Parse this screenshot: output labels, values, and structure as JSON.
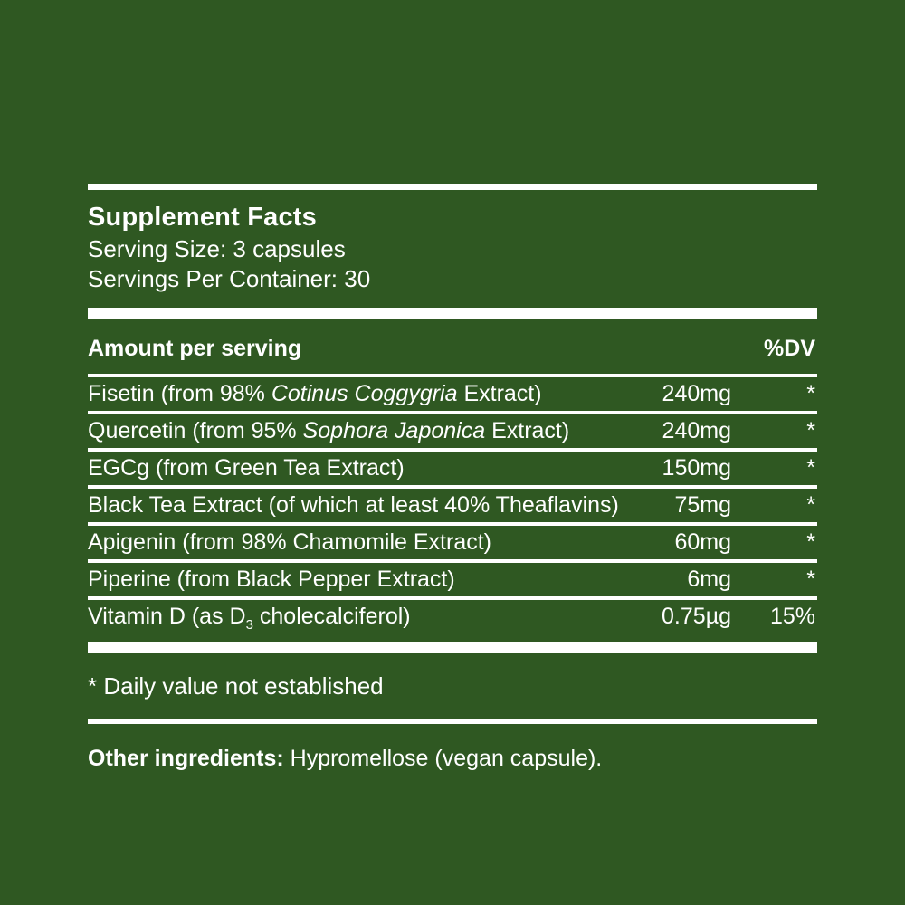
{
  "label": {
    "title": "Supplement Facts",
    "serving_size": "Serving Size: 3 capsules",
    "servings_per_container": "Servings Per Container: 30",
    "columns": {
      "amount_header": "Amount per serving",
      "dv_header": "%DV"
    },
    "rows": [
      {
        "pre": "Fisetin (from 98% ",
        "italic": "Cotinus Coggygria",
        "sub": "",
        "post": " Extract)",
        "amount": "240mg",
        "dv": "*"
      },
      {
        "pre": "Quercetin (from 95% ",
        "italic": "Sophora Japonica",
        "sub": "",
        "post": " Extract)",
        "amount": "240mg",
        "dv": "*"
      },
      {
        "pre": "EGCg (from Green Tea Extract)",
        "italic": "",
        "sub": "",
        "post": "",
        "amount": "150mg",
        "dv": "*"
      },
      {
        "pre": "Black Tea Extract (of which at least 40% Theaflavins)",
        "italic": "",
        "sub": "",
        "post": "",
        "amount": "75mg",
        "dv": "*"
      },
      {
        "pre": "Apigenin (from 98% Chamomile Extract)",
        "italic": "",
        "sub": "",
        "post": "",
        "amount": "60mg",
        "dv": "*"
      },
      {
        "pre": "Piperine (from Black Pepper Extract)",
        "italic": "",
        "sub": "",
        "post": "",
        "amount": "6mg",
        "dv": "*"
      },
      {
        "pre": "Vitamin D (as D",
        "italic": "",
        "sub": "3",
        "post": " cholecalciferol)",
        "amount": "0.75µg",
        "dv": "15%"
      }
    ],
    "footnote": "* Daily value not established",
    "other_ingredients_label": "Other ingredients:",
    "other_ingredients_text": " Hypromellose (vegan capsule).",
    "colors": {
      "background": "#2F5822",
      "text": "#FFFFFF"
    }
  }
}
